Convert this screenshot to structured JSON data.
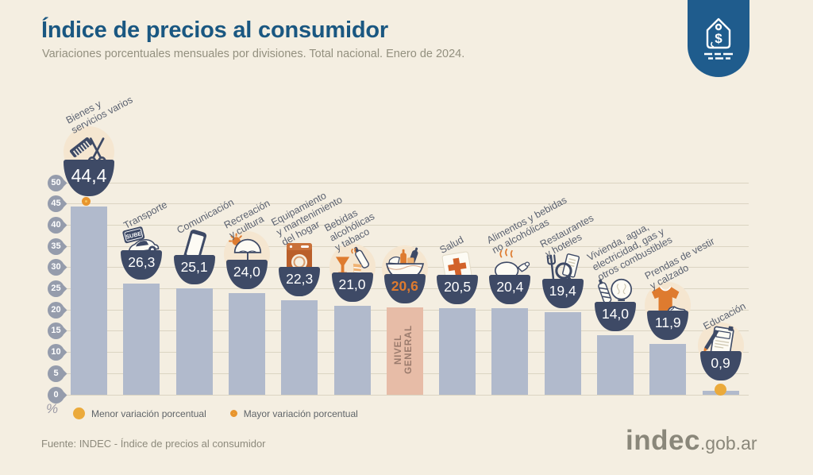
{
  "header": {
    "title": "Índice de precios al consumidor",
    "subtitle": "Variaciones porcentuales mensuales por divisiones. Total nacional. Enero de 2024."
  },
  "badge": {
    "icon": "price-tag-icon",
    "symbol": "$"
  },
  "axis": {
    "unit_label": "%",
    "ticks": [
      0,
      5,
      10,
      15,
      20,
      25,
      30,
      35,
      40,
      45,
      50
    ]
  },
  "legend": {
    "items": [
      {
        "label": "Menor variación porcentual",
        "style": "solid",
        "color": "#EBAA3B"
      },
      {
        "label": "Mayor variación porcentual",
        "style": "ring",
        "color": "#E8952E"
      }
    ]
  },
  "footer": {
    "source": "Fuente: INDEC - Índice de precios al consumidor",
    "logo_main": "indec",
    "logo_suffix": ".gob.ar"
  },
  "colors": {
    "background": "#F4EEE1",
    "title": "#1A5781",
    "subtitle": "#93907F",
    "bar": "#B1BACC",
    "bar_highlight": "#E7BCA7",
    "bowl": "#3E4A66",
    "value_text": "#FFFFFF",
    "value_highlight": "#DE7B2F",
    "grid": "#DBD4C2",
    "axis_pin": "#959CAC",
    "label": "#5A6170",
    "legend_menor": "#EBAA3B",
    "legend_mayor": "#E8952E",
    "badge": "#1F5C8D",
    "footer_text": "#8D8A7C"
  },
  "chart_data": {
    "type": "bar",
    "title": "Índice de precios al consumidor",
    "subtitle": "Variaciones porcentuales mensuales por divisiones. Total nacional. Enero de 2024.",
    "xlabel": "",
    "ylabel": "%",
    "ylim": [
      0,
      50
    ],
    "ytick_step": 5,
    "grid": true,
    "legend_position": "bottom",
    "categories": [
      "Bienes y servicios varios",
      "Transporte",
      "Comunicación",
      "Recreación y cultura",
      "Equipamiento y mantenimiento del hogar",
      "Bebidas alcohólicas y tabaco",
      "Nivel general",
      "Salud",
      "Alimentos y bebidas no alcohólicas",
      "Restaurantes y hoteles",
      "Vivienda, agua, electricidad, gas y otros combustibles",
      "Prendas de vestir y calzado",
      "Educación"
    ],
    "values": [
      44.4,
      26.3,
      25.1,
      24.0,
      22.3,
      21.0,
      20.6,
      20.5,
      20.4,
      19.4,
      14.0,
      11.9,
      0.9
    ],
    "value_labels": [
      "44,4",
      "26,3",
      "25,1",
      "24,0",
      "22,3",
      "21,0",
      "20,6",
      "20,5",
      "20,4",
      "19,4",
      "14,0",
      "11,9",
      "0,9"
    ],
    "markers": {
      "menor": {
        "category": "Educación",
        "value": 0.9
      },
      "mayor": {
        "category": "Bienes y servicios varios",
        "value": 44.4
      }
    },
    "bars": [
      {
        "label_lines": [
          "Bienes y",
          "servicios varios"
        ],
        "icon": "comb-scissors-icon",
        "marker": "mayor",
        "halo": true,
        "big": true
      },
      {
        "label_lines": [
          "Transporte"
        ],
        "icon": "car-sube-icon",
        "card_text": "SUBE"
      },
      {
        "label_lines": [
          "Comunicación"
        ],
        "icon": "smartphone-icon"
      },
      {
        "label_lines": [
          "Recreación",
          "y cultura"
        ],
        "icon": "umbrella-sun-icon",
        "halo": true
      },
      {
        "label_lines": [
          "Equipamiento",
          "y mantenimiento",
          "del hogar"
        ],
        "icon": "washing-machine-icon"
      },
      {
        "label_lines": [
          "Bebidas",
          "alcohólicas",
          "y tabaco"
        ],
        "icon": "drinks-icon",
        "halo": true
      },
      {
        "label_lines": [],
        "icon": "shopping-basket-icon",
        "highlight": true,
        "bar_text_lines": [
          "NIVEL",
          "GENERAL"
        ],
        "halo": true
      },
      {
        "label_lines": [
          "Salud"
        ],
        "icon": "medical-cross-icon"
      },
      {
        "label_lines": [
          "Alimentos y bebidas",
          "no alcohólicas"
        ],
        "icon": "chicken-icon"
      },
      {
        "label_lines": [
          "Restaurantes",
          "y hoteles"
        ],
        "icon": "fork-menu-icon"
      },
      {
        "label_lines": [
          "Vivienda, agua,",
          "electricidad, gas y",
          "otros combustibles"
        ],
        "icon": "bulb-icon"
      },
      {
        "label_lines": [
          "Prendas de vestir",
          "y calzado"
        ],
        "icon": "tshirt-shoe-icon",
        "halo": true
      },
      {
        "label_lines": [
          "Educación"
        ],
        "icon": "notebook-pencil-icon",
        "marker": "menor",
        "halo": true
      }
    ]
  }
}
